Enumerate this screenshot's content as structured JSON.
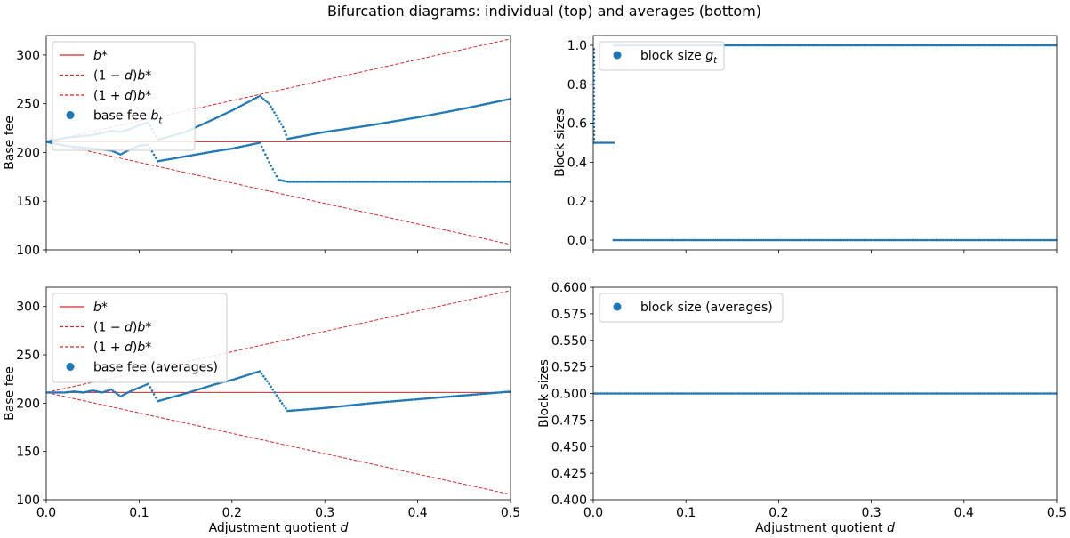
{
  "figure": {
    "title": "Bifurcation diagrams: individual (top) and averages (bottom)"
  },
  "chart_data": [
    {
      "id": "top-left",
      "type": "scatter",
      "title": "",
      "xlabel": "",
      "ylabel": "Base fee",
      "xlim": [
        0,
        0.5
      ],
      "ylim": [
        100,
        320
      ],
      "xticks": [],
      "yticks": [
        "100",
        "150",
        "200",
        "250",
        "300"
      ],
      "bstar": 211,
      "legend": {
        "placement": "top-left",
        "entries": [
          {
            "kind": "solid",
            "label": "b*",
            "text_parts": [
              "b",
              "*"
            ],
            "color": "#d62728"
          },
          {
            "kind": "dashed",
            "label": "(1-d)b*",
            "text_parts": [
              "(1 − ",
              "d",
              ")",
              "b",
              "*"
            ],
            "color": "#d62728"
          },
          {
            "kind": "dashed",
            "label": "(1+d)b*",
            "text_parts": [
              "(1 + ",
              "d",
              ")",
              "b",
              "*"
            ],
            "color": "#d62728"
          },
          {
            "kind": "dot",
            "label": "base fee b_t",
            "text_parts": [
              "base fee ",
              "b",
              "t"
            ],
            "color": "#1f77b4"
          }
        ]
      },
      "series": [
        {
          "name": "base fee upper branch",
          "points": [
            [
              0.0,
              211
            ],
            [
              0.01,
              213
            ],
            [
              0.02,
              215
            ],
            [
              0.03,
              216
            ],
            [
              0.04,
              217
            ],
            [
              0.05,
              218
            ],
            [
              0.06,
              220
            ],
            [
              0.07,
              222
            ],
            [
              0.08,
              221
            ],
            [
              0.09,
              224
            ],
            [
              0.1,
              228
            ],
            [
              0.11,
              231
            ],
            [
              0.12,
              213
            ],
            [
              0.15,
              221
            ],
            [
              0.18,
              234
            ],
            [
              0.2,
              243
            ],
            [
              0.23,
              258
            ],
            [
              0.24,
              250
            ],
            [
              0.255,
              226
            ],
            [
              0.26,
              214
            ],
            [
              0.3,
              221
            ],
            [
              0.35,
              228
            ],
            [
              0.4,
              236
            ],
            [
              0.45,
              245
            ],
            [
              0.5,
              255
            ]
          ]
        },
        {
          "name": "base fee lower branch",
          "points": [
            [
              0.0,
              211
            ],
            [
              0.01,
              209
            ],
            [
              0.02,
              207
            ],
            [
              0.03,
              206
            ],
            [
              0.04,
              205
            ],
            [
              0.05,
              204
            ],
            [
              0.06,
              203
            ],
            [
              0.07,
              202
            ],
            [
              0.08,
              198
            ],
            [
              0.09,
              203
            ],
            [
              0.1,
              207
            ],
            [
              0.11,
              208
            ],
            [
              0.12,
              191
            ],
            [
              0.15,
              196
            ],
            [
              0.18,
              201
            ],
            [
              0.2,
              204
            ],
            [
              0.23,
              210
            ],
            [
              0.24,
              190
            ],
            [
              0.25,
              172
            ],
            [
              0.26,
              170
            ],
            [
              0.3,
              170
            ],
            [
              0.35,
              170
            ],
            [
              0.4,
              170
            ],
            [
              0.45,
              170
            ],
            [
              0.5,
              170
            ]
          ]
        }
      ]
    },
    {
      "id": "top-right",
      "type": "scatter",
      "title": "",
      "xlabel": "",
      "ylabel": "Block sizes",
      "xlim": [
        0,
        0.5
      ],
      "ylim": [
        -0.05,
        1.05
      ],
      "xticks": [],
      "yticks": [
        "0.0",
        "0.2",
        "0.4",
        "0.6",
        "0.8",
        "1.0"
      ],
      "legend": {
        "placement": "top-left",
        "entries": [
          {
            "kind": "dot",
            "label": "block size g_t",
            "text_parts": [
              "block size ",
              "g",
              "t"
            ],
            "color": "#1f77b4"
          }
        ]
      },
      "series": [
        {
          "name": "block size early",
          "x_range": [
            0,
            0.022
          ],
          "value": 0.5
        },
        {
          "name": "block size high",
          "x_range": [
            0.022,
            0.5
          ],
          "value": 1.0
        },
        {
          "name": "block size low",
          "x_range": [
            0.022,
            0.5
          ],
          "value": 0.0
        }
      ]
    },
    {
      "id": "bottom-left",
      "type": "scatter",
      "title": "",
      "xlabel": "Adjustment quotient d",
      "xlabel_parts": [
        "Adjustment quotient ",
        "d"
      ],
      "ylabel": "Base fee",
      "xlim": [
        0,
        0.5
      ],
      "ylim": [
        100,
        320
      ],
      "xticks": [
        "0.0",
        "0.1",
        "0.2",
        "0.3",
        "0.4",
        "0.5"
      ],
      "yticks": [
        "100",
        "150",
        "200",
        "250",
        "300"
      ],
      "bstar": 211,
      "legend": {
        "placement": "top-left",
        "entries": [
          {
            "kind": "solid",
            "label": "b*",
            "text_parts": [
              "b",
              "*"
            ],
            "color": "#d62728"
          },
          {
            "kind": "dashed",
            "label": "(1-d)b*",
            "text_parts": [
              "(1 − ",
              "d",
              ")",
              "b",
              "*"
            ],
            "color": "#d62728"
          },
          {
            "kind": "dashed",
            "label": "(1+d)b*",
            "text_parts": [
              "(1 + ",
              "d",
              ")",
              "b",
              "*"
            ],
            "color": "#d62728"
          },
          {
            "kind": "dot",
            "label": "base fee (averages)",
            "text_parts": [
              "base fee (averages)"
            ],
            "color": "#1f77b4"
          }
        ]
      },
      "series": [
        {
          "name": "base fee (averages)",
          "points": [
            [
              0.0,
              211
            ],
            [
              0.02,
              211
            ],
            [
              0.03,
              212
            ],
            [
              0.04,
              211
            ],
            [
              0.05,
              213
            ],
            [
              0.06,
              211
            ],
            [
              0.07,
              214
            ],
            [
              0.08,
              207
            ],
            [
              0.09,
              212
            ],
            [
              0.1,
              216
            ],
            [
              0.11,
              220
            ],
            [
              0.12,
              202
            ],
            [
              0.15,
              210
            ],
            [
              0.18,
              219
            ],
            [
              0.2,
              224
            ],
            [
              0.23,
              233
            ],
            [
              0.24,
              220
            ],
            [
              0.25,
              205
            ],
            [
              0.26,
              192
            ],
            [
              0.3,
              195
            ],
            [
              0.35,
              200
            ],
            [
              0.4,
              204
            ],
            [
              0.45,
              208
            ],
            [
              0.5,
              212
            ]
          ]
        }
      ]
    },
    {
      "id": "bottom-right",
      "type": "scatter",
      "title": "",
      "xlabel": "Adjustment quotient d",
      "xlabel_parts": [
        "Adjustment quotient ",
        "d"
      ],
      "ylabel": "Block sizes",
      "xlim": [
        0,
        0.5
      ],
      "ylim": [
        0.4,
        0.6
      ],
      "xticks": [
        "0.0",
        "0.1",
        "0.2",
        "0.3",
        "0.4",
        "0.5"
      ],
      "yticks": [
        "0.400",
        "0.425",
        "0.450",
        "0.475",
        "0.500",
        "0.525",
        "0.550",
        "0.575",
        "0.600"
      ],
      "legend": {
        "placement": "top-left",
        "entries": [
          {
            "kind": "dot",
            "label": "block size (averages)",
            "text_parts": [
              "block size (averages)"
            ],
            "color": "#1f77b4"
          }
        ]
      },
      "series": [
        {
          "name": "block size (averages)",
          "x_range": [
            0,
            0.5
          ],
          "value": 0.5
        }
      ]
    }
  ]
}
